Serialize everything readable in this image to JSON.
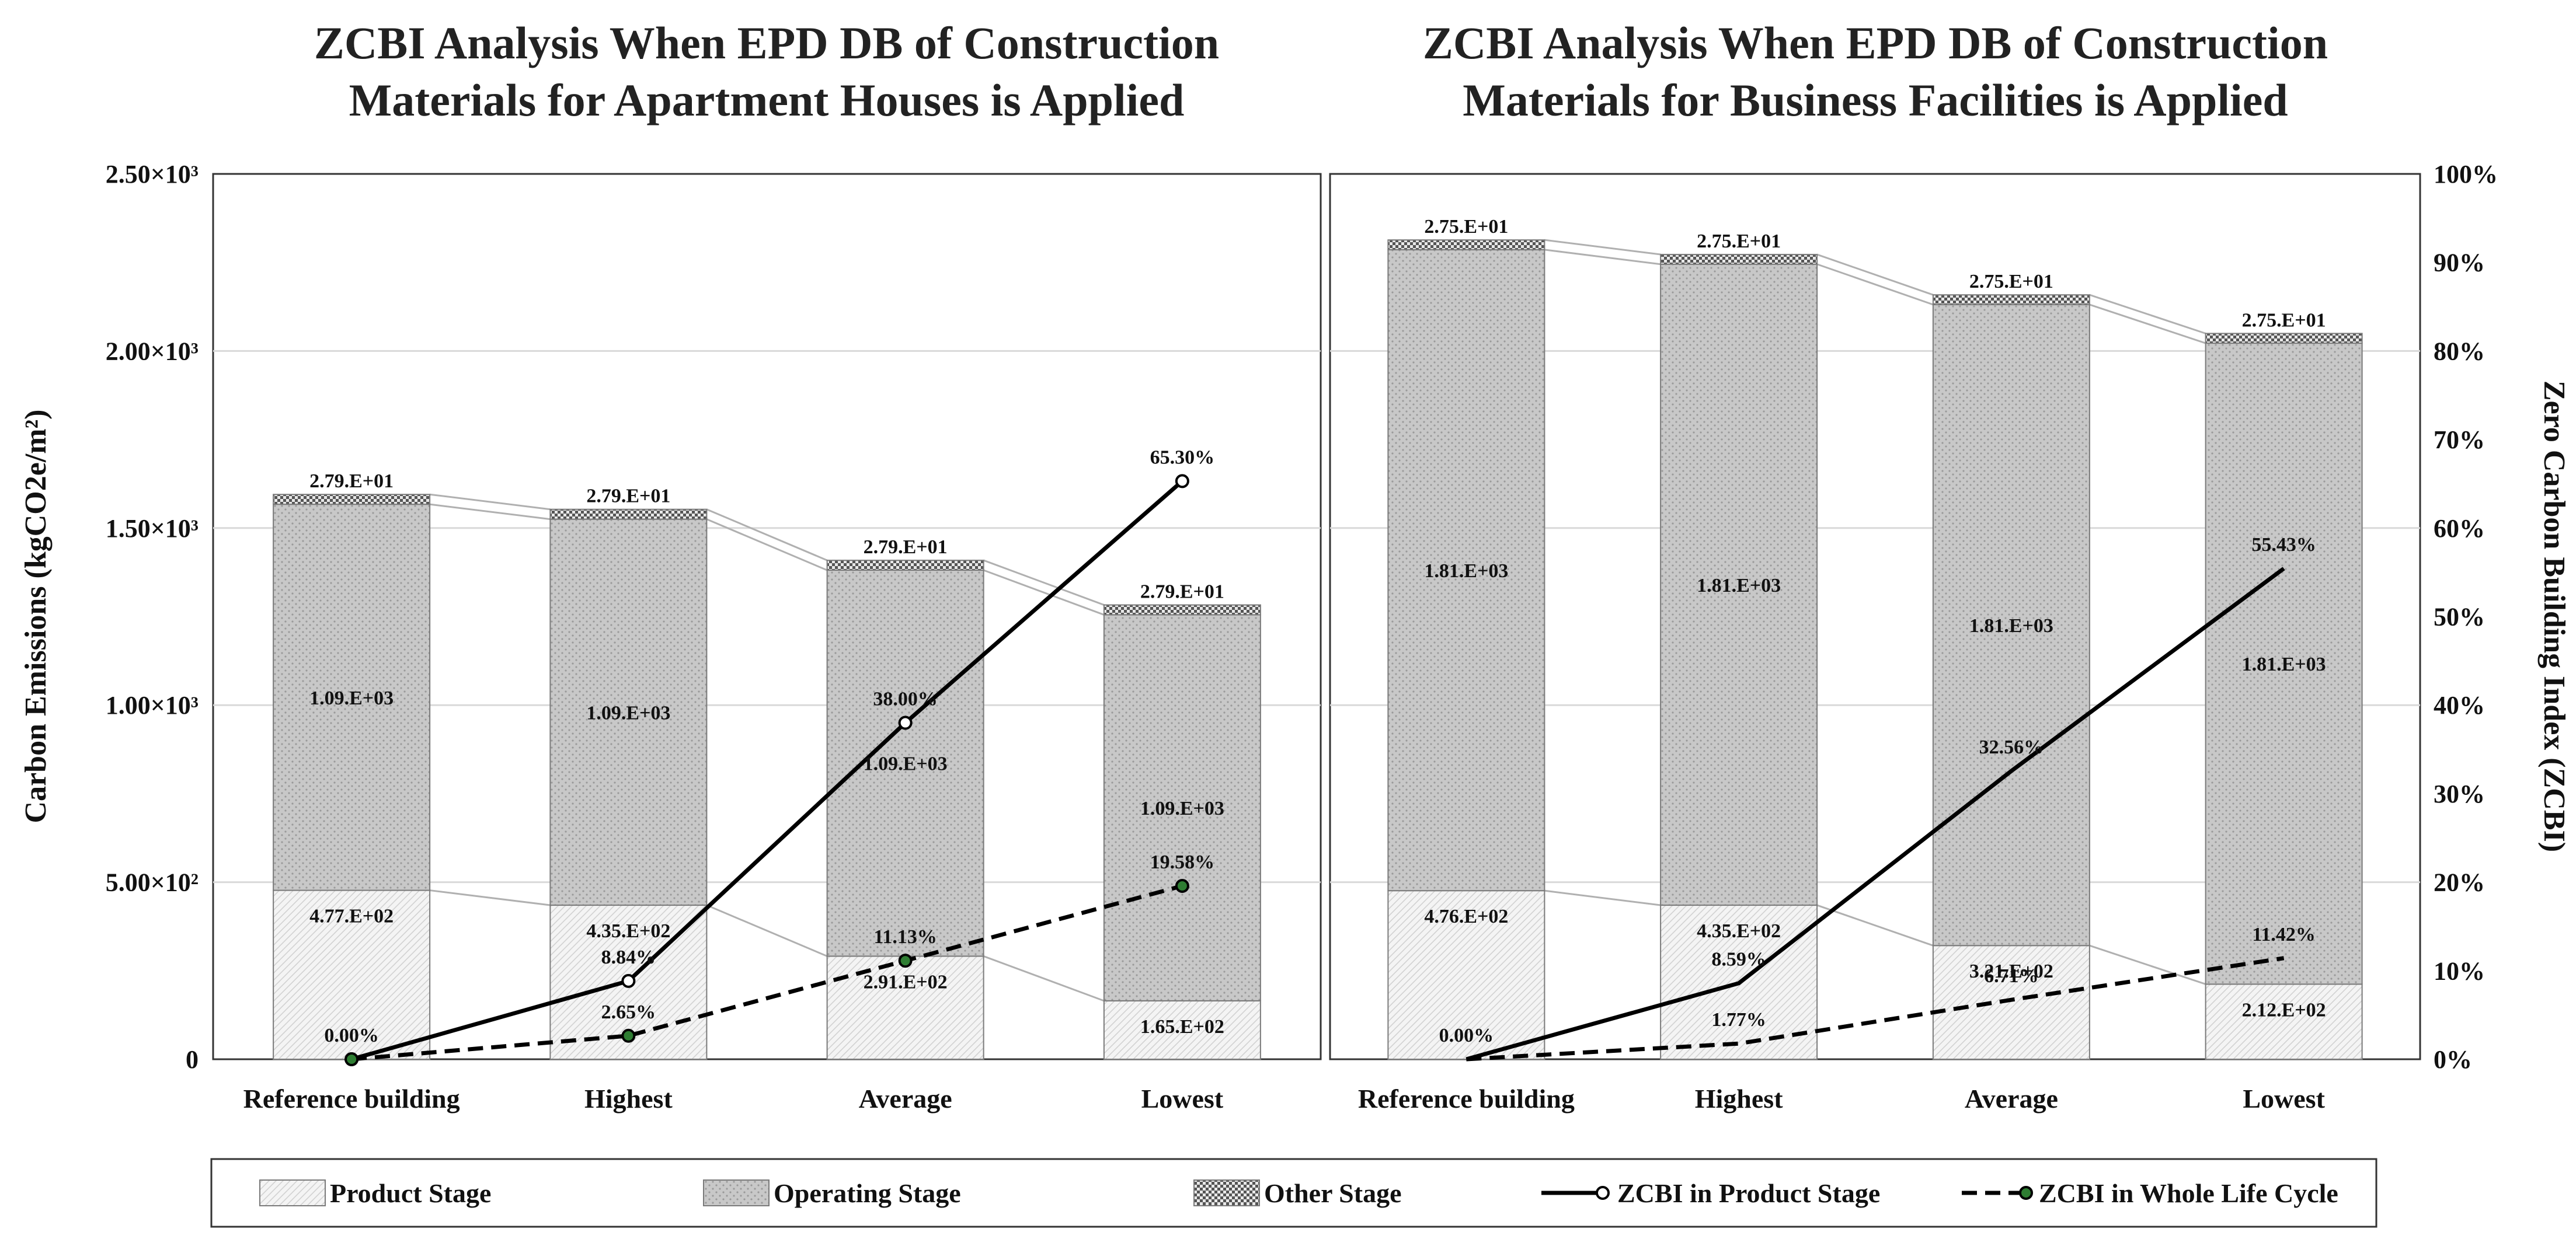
{
  "colors": {
    "product": "#f3f3f3",
    "operating": "#c4c4c4",
    "other": "#8a8a8a",
    "line_product": "#000000",
    "line_whole": "#000000",
    "marker_whole_fill": "#2e7d32",
    "gridline": "#d9d9d9",
    "connector": "#b0b0b0"
  },
  "legend": {
    "product": "Product Stage",
    "operating": "Operating Stage",
    "other": "Other Stage",
    "zcbi_product": "ZCBI in Product Stage",
    "zcbi_whole": "ZCBI in Whole Life Cycle"
  },
  "axes": {
    "left_title": "Carbon Emissions   (kgCO2e/m²)",
    "right_title": "Zero Carbon Building Index (ZCBI)",
    "left_ticks": [
      "0",
      "5.00×10²",
      "1.00×10³",
      "1.50×10³",
      "2.00×10³",
      "2.50×10³"
    ],
    "right_ticks": [
      "0%",
      "10%",
      "20%",
      "30%",
      "40%",
      "50%",
      "60%",
      "70%",
      "80%",
      "90%",
      "100%"
    ]
  },
  "chart_data": [
    {
      "type": "bar",
      "stacked": true,
      "title": "ZCBI Analysis When EPD DB of Construction Materials for Apartment Houses is Applied",
      "title_lines": [
        "ZCBI Analysis When EPD DB of Construction",
        "Materials for Apartment Houses is Applied"
      ],
      "categories": [
        "Reference building",
        "Highest",
        "Average",
        "Lowest"
      ],
      "ylabel": "Carbon Emissions (kgCO2e/m²)",
      "ylim": [
        0,
        2500
      ],
      "y2lim": [
        0,
        100
      ],
      "series": [
        {
          "name": "Product Stage",
          "values": [
            477,
            435,
            291,
            165
          ],
          "labels": [
            "4.77.E+02",
            "4.35.E+02",
            "2.91.E+02",
            "1.65.E+02"
          ]
        },
        {
          "name": "Operating Stage",
          "values": [
            1090,
            1090,
            1090,
            1090
          ],
          "labels": [
            "1.09.E+03",
            "1.09.E+03",
            "1.09.E+03",
            "1.09.E+03"
          ]
        },
        {
          "name": "Other Stage",
          "values": [
            27.9,
            27.9,
            27.9,
            27.9
          ],
          "labels": [
            "2.79.E+01",
            "2.79.E+01",
            "2.79.E+01",
            "2.79.E+01"
          ]
        }
      ],
      "lines": [
        {
          "name": "ZCBI in Product Stage",
          "axis": "right",
          "values": [
            0.0,
            8.84,
            38.0,
            65.3
          ],
          "labels": [
            "0.00%",
            "8.84%",
            "38.00%",
            "65.30%"
          ]
        },
        {
          "name": "ZCBI in Whole Life Cycle",
          "axis": "right",
          "values": [
            0.0,
            2.65,
            11.13,
            19.58
          ],
          "labels": [
            "",
            "2.65%",
            "11.13%",
            "19.58%"
          ]
        }
      ]
    },
    {
      "type": "bar",
      "stacked": true,
      "title": "ZCBI Analysis When EPD DB of Construction Materials for Business Facilities is Applied",
      "title_lines": [
        "ZCBI Analysis When EPD DB of Construction",
        "Materials for Business Facilities is Applied"
      ],
      "categories": [
        "Reference building",
        "Highest",
        "Average",
        "Lowest"
      ],
      "ylabel": "Zero Carbon Building Index (ZCBI)",
      "ylim": [
        0,
        2500
      ],
      "y2lim": [
        0,
        100
      ],
      "series": [
        {
          "name": "Product Stage",
          "values": [
            476,
            435,
            321,
            212
          ],
          "labels": [
            "4.76.E+02",
            "4.35.E+02",
            "3.21.E+02",
            "2.12.E+02"
          ]
        },
        {
          "name": "Operating Stage",
          "values": [
            1810,
            1810,
            1810,
            1810
          ],
          "labels": [
            "1.81.E+03",
            "1.81.E+03",
            "1.81.E+03",
            "1.81.E+03"
          ]
        },
        {
          "name": "Other Stage",
          "values": [
            27.5,
            27.5,
            27.5,
            27.5
          ],
          "labels": [
            "2.75.E+01",
            "2.75.E+01",
            "2.75.E+01",
            "2.75.E+01"
          ]
        }
      ],
      "lines": [
        {
          "name": "ZCBI in Product Stage",
          "axis": "right",
          "values": [
            0.0,
            8.59,
            32.56,
            55.43
          ],
          "labels": [
            "0.00%",
            "8.59%",
            "32.56%",
            "55.43%"
          ]
        },
        {
          "name": "ZCBI in Whole Life Cycle",
          "axis": "right",
          "values": [
            0.0,
            1.77,
            6.71,
            11.42
          ],
          "labels": [
            "",
            "1.77%",
            "6.71%",
            "11.42%"
          ]
        }
      ]
    }
  ]
}
